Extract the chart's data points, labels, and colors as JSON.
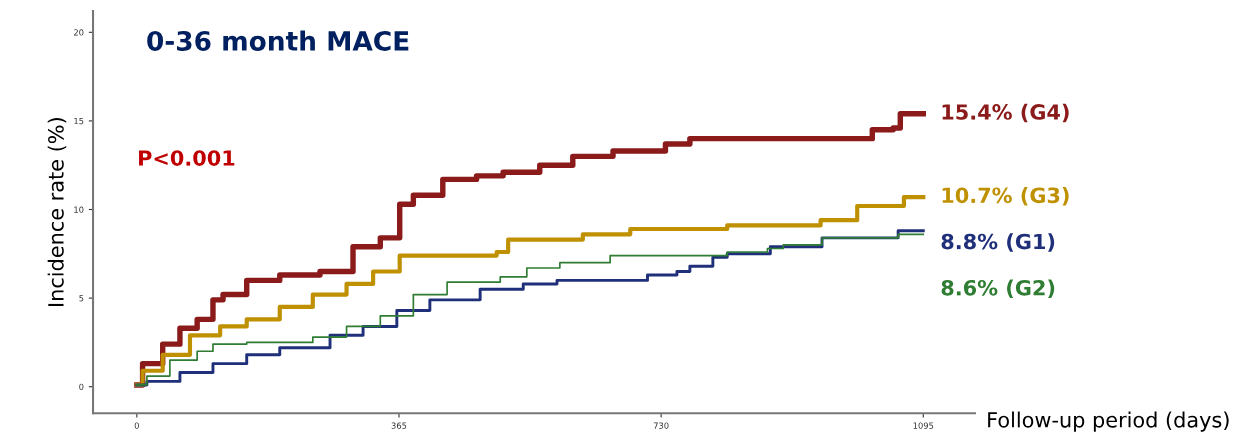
{
  "chart_data": {
    "type": "step",
    "title": "0-36 month MACE",
    "xlabel": "Follow-up period (days)",
    "ylabel": "Incidence rate (%)",
    "annotations": [
      "P<0.001"
    ],
    "xlim": [
      -61,
      1167
    ],
    "xticks": [
      0,
      365,
      730,
      1095
    ],
    "ylim": [
      -1.5,
      21.2
    ],
    "yticks": [
      0,
      5,
      10,
      15,
      20
    ],
    "grid": false,
    "legend": false,
    "series": [
      {
        "name": "15.4% (G4)",
        "color": "#8b1a1a",
        "x": [
          0,
          8,
          36,
          60,
          84,
          106,
          120,
          153,
          199,
          255,
          301,
          339,
          366,
          385,
          426,
          473,
          510,
          561,
          607,
          663,
          736,
          770,
          1024,
          1053,
          1063,
          1095
        ],
        "values": [
          0.1,
          1.3,
          2.4,
          3.3,
          3.8,
          4.9,
          5.2,
          6.0,
          6.3,
          6.5,
          7.9,
          8.4,
          10.3,
          10.8,
          11.7,
          11.9,
          12.1,
          12.5,
          13.0,
          13.3,
          13.7,
          14.0,
          14.5,
          14.6,
          15.4,
          15.4
        ]
      },
      {
        "name": "10.7% (G3)",
        "color": "#bf9000",
        "x": [
          0,
          8,
          36,
          74,
          116,
          153,
          199,
          245,
          292,
          329,
          366,
          501,
          517,
          621,
          687,
          822,
          952,
          1003,
          1068,
          1095
        ],
        "values": [
          0.1,
          0.9,
          1.8,
          2.9,
          3.4,
          3.8,
          4.5,
          5.2,
          5.8,
          6.5,
          7.4,
          7.6,
          8.3,
          8.6,
          8.9,
          9.1,
          9.4,
          10.2,
          10.7,
          10.7
        ]
      },
      {
        "name": "8.8% (G1)",
        "color": "#1f2f7a",
        "x": [
          0,
          14,
          60,
          106,
          153,
          199,
          269,
          315,
          362,
          408,
          478,
          538,
          585,
          711,
          752,
          770,
          802,
          822,
          882,
          954,
          1060,
          1095
        ],
        "values": [
          0.1,
          0.3,
          0.8,
          1.3,
          1.8,
          2.2,
          2.9,
          3.4,
          4.3,
          4.9,
          5.5,
          5.8,
          6.0,
          6.3,
          6.5,
          6.8,
          7.3,
          7.5,
          7.9,
          8.4,
          8.8,
          8.8
        ]
      },
      {
        "name": "8.6% (G2)",
        "color": "#2e7d32",
        "x": [
          0,
          14,
          46,
          84,
          106,
          153,
          245,
          292,
          339,
          385,
          432,
          506,
          543,
          589,
          659,
          822,
          878,
          900,
          954,
          1060,
          1095
        ],
        "values": [
          0.1,
          0.6,
          1.5,
          2.0,
          2.4,
          2.5,
          2.8,
          3.4,
          4.0,
          5.2,
          5.9,
          6.2,
          6.7,
          7.0,
          7.4,
          7.6,
          7.8,
          8.0,
          8.4,
          8.6,
          8.6
        ]
      }
    ]
  }
}
